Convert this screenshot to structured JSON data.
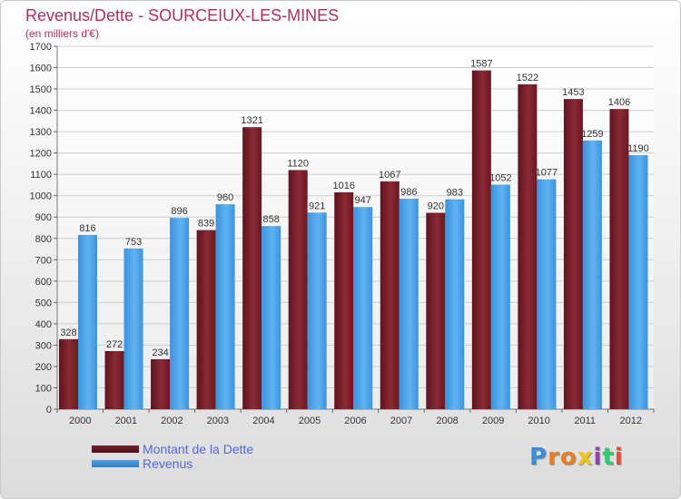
{
  "title": "Revenus/Dette - SOURCEIUX-LES-MINES",
  "subtitle": "(en milliers d'€)",
  "logo": "Proxiti",
  "colors": {
    "dette": "#7a1f2a",
    "revenus": "#4aa3e8",
    "title": "#b0305a",
    "legend_text": "#5566dd"
  },
  "chart_data": {
    "type": "bar",
    "title": "Revenus/Dette - SOURCEIUX-LES-MINES",
    "subtitle": "(en milliers d'€)",
    "categories": [
      "2000",
      "2001",
      "2002",
      "2003",
      "2004",
      "2005",
      "2006",
      "2007",
      "2008",
      "2009",
      "2010",
      "2011",
      "2012"
    ],
    "series": [
      {
        "name": "Montant de la Dette",
        "color": "#7a1f2a",
        "values": [
          328,
          272,
          234,
          839,
          1321,
          1120,
          1016,
          1067,
          920,
          1587,
          1522,
          1453,
          1406
        ]
      },
      {
        "name": "Revenus",
        "color": "#4aa3e8",
        "values": [
          816,
          753,
          896,
          960,
          858,
          921,
          947,
          986,
          983,
          1052,
          1077,
          1259,
          1190
        ]
      }
    ],
    "ylim": [
      0,
      1700
    ],
    "yticks": [
      0,
      100,
      200,
      300,
      400,
      500,
      600,
      700,
      800,
      900,
      1000,
      1100,
      1200,
      1300,
      1400,
      1500,
      1600,
      1700
    ],
    "grid": true,
    "legend": "bottom-left"
  }
}
